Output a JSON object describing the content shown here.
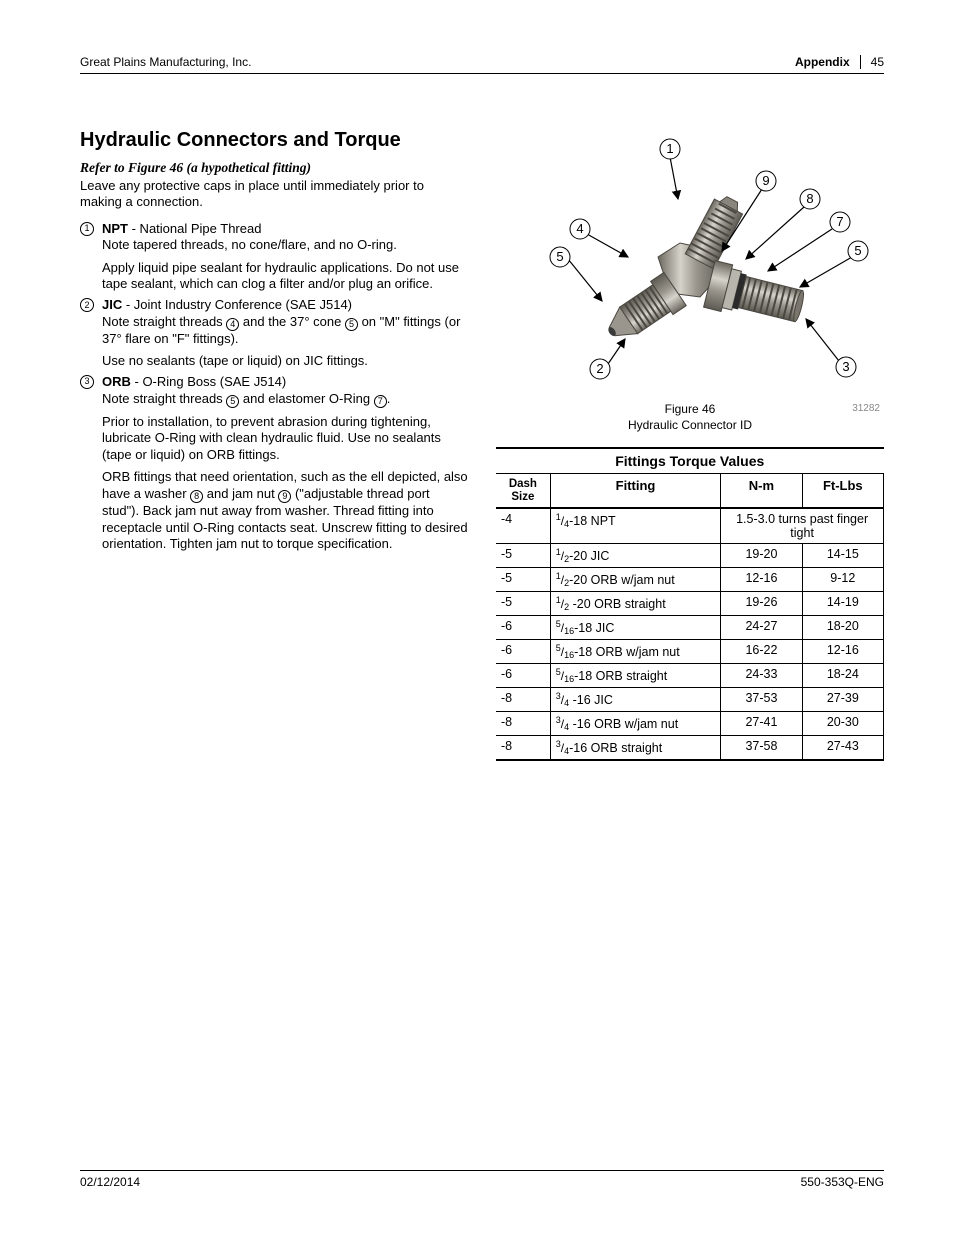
{
  "header": {
    "company": "Great Plains Manufacturing, Inc.",
    "section": "Appendix",
    "page": "45"
  },
  "title": "Hydraulic Connectors and Torque",
  "ref_line": "Refer to Figure 46 (a hypothetical fitting)",
  "intro": "Leave any protective caps in place until immediately prior to making a connection.",
  "defs": {
    "npt": {
      "num": "1",
      "abbr": "NPT",
      "name": " - National Pipe Thread",
      "line1": "Note tapered threads, no cone/flare, and no O-ring.",
      "line2": "Apply liquid pipe sealant for hydraulic applications. Do not use tape sealant, which can clog a filter and/or plug an orifice."
    },
    "jic": {
      "num": "2",
      "abbr": "JIC",
      "name": " - Joint Industry Conference (SAE J514)",
      "line1a": "Note straight threads ",
      "c4": "4",
      "line1b": " and the 37° cone ",
      "c5": "5",
      "line1c": " on \"M\" fittings (or 37° flare on \"F\" fittings).",
      "line2": "Use no sealants (tape or liquid) on JIC fittings."
    },
    "orb": {
      "num": "3",
      "abbr": "ORB",
      "name": " - O-Ring Boss (SAE J514)",
      "line1a": "Note straight threads ",
      "c5": "5",
      "line1b": " and elastomer O-Ring ",
      "c7": "7",
      "line1c": ".",
      "line2": "Prior to installation, to prevent abrasion during tightening, lubricate O-Ring with clean hydraulic fluid. Use no sealants (tape or liquid) on ORB fittings.",
      "line3a": "ORB fittings that need orientation, such as the ell depicted, also have a washer ",
      "c8": "8",
      "line3b": " and jam nut ",
      "c9": "9",
      "line3c": " (\"adjustable thread port stud\"). Back jam nut away from washer. Thread fitting into receptacle until O-Ring contacts seat. Unscrew fitting to desired orientation. Tighten jam nut to torque specification."
    }
  },
  "figure": {
    "label": "Figure 46",
    "caption": "Hydraulic Connector ID",
    "id": "31282",
    "callouts": {
      "c1": "1",
      "c2": "2",
      "c3": "3",
      "c4": "4",
      "c5a": "5",
      "c5b": "5",
      "c7": "7",
      "c8": "8",
      "c9": "9"
    },
    "colors": {
      "metal_light": "#c8c6bf",
      "metal_mid": "#9a968d",
      "metal_dark": "#6b675f",
      "thread": "#4a4740",
      "oring": "#2b2b2b",
      "callout_stroke": "#000000",
      "callout_fill": "#ffffff"
    }
  },
  "table": {
    "title": "Fittings Torque Values",
    "headers": {
      "dash": "Dash Size",
      "fitting": "Fitting",
      "nm": "N-m",
      "ftlbs": "Ft-Lbs"
    },
    "rows": [
      {
        "dash": "-4",
        "num": "1",
        "den": "4",
        "rest": "-18 NPT",
        "nm": "",
        "ftlbs": "",
        "merged": "1.5-3.0 turns past finger tight"
      },
      {
        "dash": "-5",
        "num": "1",
        "den": "2",
        "rest": "-20 JIC",
        "nm": "19-20",
        "ftlbs": "14-15"
      },
      {
        "dash": "-5",
        "num": "1",
        "den": "2",
        "rest": "-20 ORB w/jam nut",
        "nm": "12-16",
        "ftlbs": "9-12"
      },
      {
        "dash": "-5",
        "num": "1",
        "den": "2",
        "rest": " -20 ORB straight",
        "nm": "19-26",
        "ftlbs": "14-19"
      },
      {
        "dash": "-6",
        "num": "5",
        "den": "16",
        "rest": "-18 JIC",
        "nm": "24-27",
        "ftlbs": "18-20"
      },
      {
        "dash": "-6",
        "num": "5",
        "den": "16",
        "rest": "-18 ORB w/jam nut",
        "nm": "16-22",
        "ftlbs": "12-16"
      },
      {
        "dash": "-6",
        "num": "5",
        "den": "16",
        "rest": "-18 ORB straight",
        "nm": "24-33",
        "ftlbs": "18-24"
      },
      {
        "dash": "-8",
        "num": "3",
        "den": "4",
        "rest": " -16 JIC",
        "nm": "37-53",
        "ftlbs": "27-39"
      },
      {
        "dash": "-8",
        "num": "3",
        "den": "4",
        "rest": " -16 ORB w/jam nut",
        "nm": "27-41",
        "ftlbs": "20-30"
      },
      {
        "dash": "-8",
        "num": "3",
        "den": "4",
        "rest": "-16 ORB straight",
        "nm": "37-58",
        "ftlbs": "27-43"
      }
    ],
    "col_widths": {
      "dash": "14%",
      "fitting": "44%",
      "nm": "21%",
      "ftlbs": "21%"
    }
  },
  "footer": {
    "date": "02/12/2014",
    "doc": "550-353Q-ENG"
  }
}
